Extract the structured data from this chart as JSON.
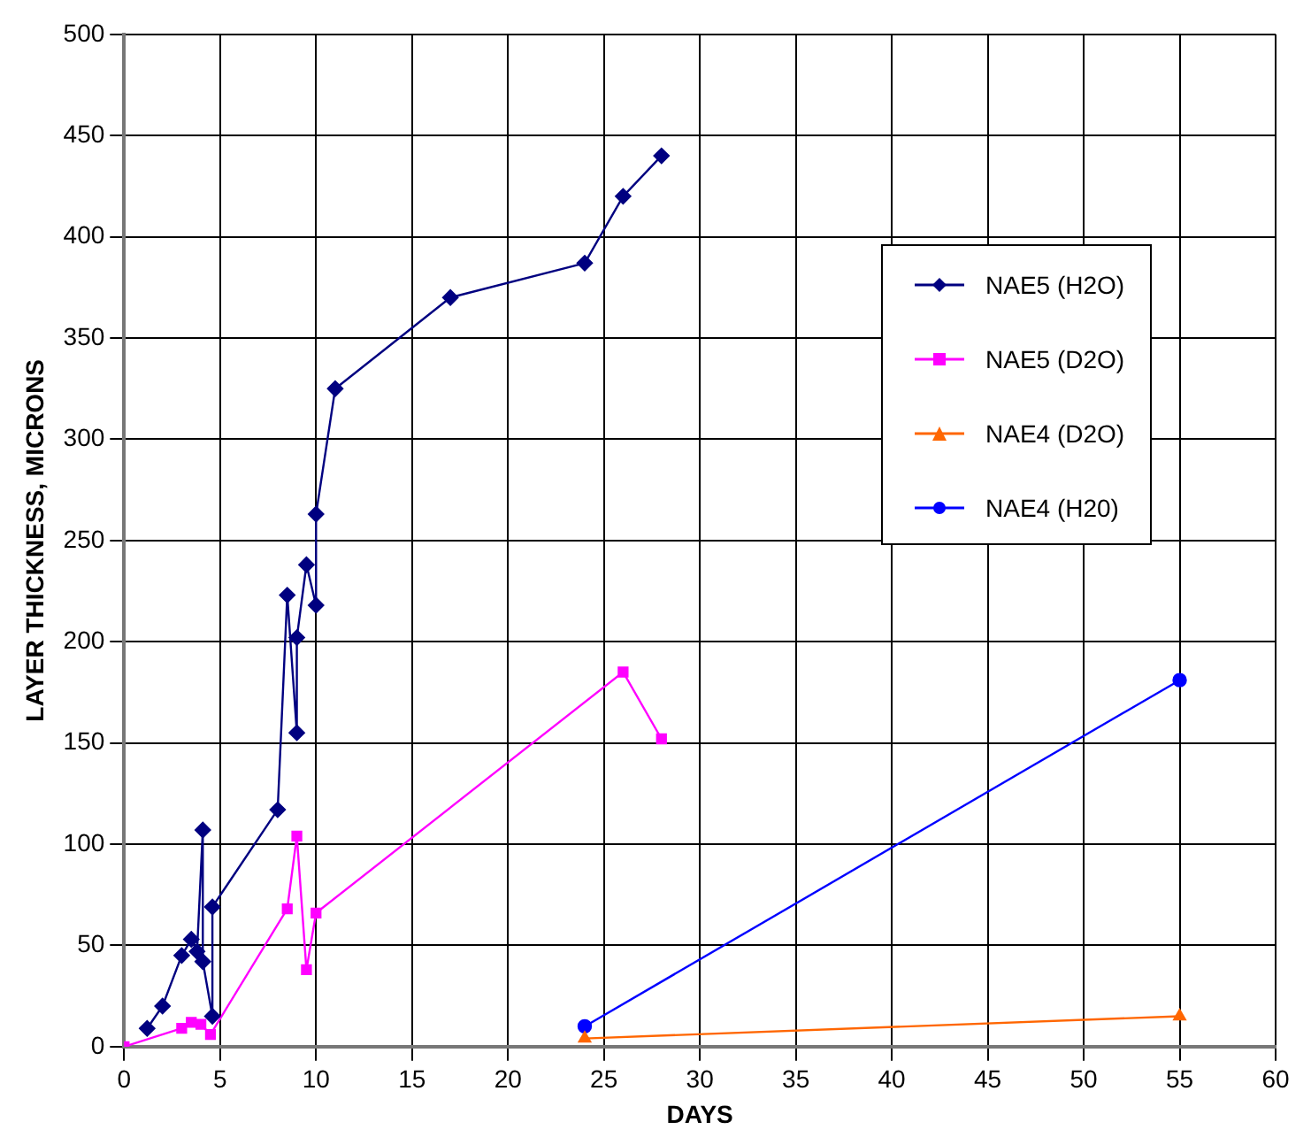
{
  "chart_data": {
    "type": "line",
    "xlabel": "DAYS",
    "ylabel": "LAYER THICKNESS, MICRONS",
    "xlim": [
      0,
      60
    ],
    "xticks": [
      0,
      5,
      10,
      15,
      20,
      25,
      30,
      35,
      40,
      45,
      50,
      55,
      60
    ],
    "ylim": [
      0,
      500
    ],
    "yticks": [
      0,
      50,
      100,
      150,
      200,
      250,
      300,
      350,
      400,
      450,
      500
    ],
    "grid": true,
    "legend": "top right",
    "series": [
      {
        "name": "NAE5 (H2O)",
        "color": "#000080",
        "marker": "diamond",
        "x": [
          1.2,
          2,
          3,
          3.5,
          3.8,
          4.1,
          4.1,
          4.6,
          4.6,
          8,
          8.5,
          9,
          9,
          9.5,
          10,
          10,
          11,
          17,
          24,
          26,
          28
        ],
        "values": [
          9,
          20,
          45,
          53,
          47,
          107,
          42,
          15,
          69,
          117,
          223,
          155,
          202,
          238,
          218,
          263,
          325,
          370,
          387,
          420,
          440
        ]
      },
      {
        "name": "NAE5 (D2O)",
        "color": "#ff00ff",
        "marker": "square",
        "x": [
          0,
          3,
          3.5,
          4,
          4.5,
          8.5,
          9,
          9.5,
          10,
          26,
          28
        ],
        "values": [
          0,
          9,
          12,
          11,
          6,
          68,
          104,
          38,
          66,
          185,
          152
        ]
      },
      {
        "name": "NAE4 (D2O)",
        "color": "#ff6600",
        "marker": "triangle",
        "x": [
          24,
          55
        ],
        "values": [
          4,
          15
        ]
      },
      {
        "name": "NAE4 (H20)",
        "color": "#0000ff",
        "marker": "circle",
        "x": [
          24,
          55
        ],
        "values": [
          10,
          181
        ]
      }
    ]
  }
}
